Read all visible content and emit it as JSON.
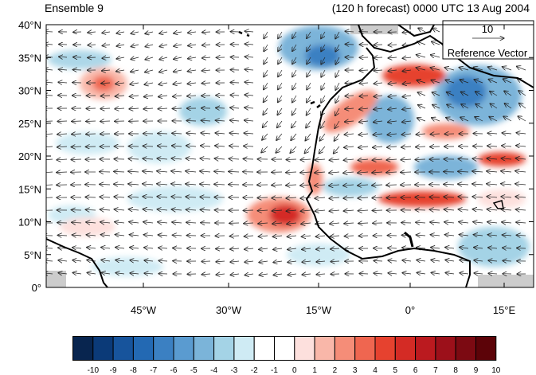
{
  "title_left": "Ensemble 9",
  "title_right": "(120 h forecast) 0000 UTC 13 Aug 2004",
  "reference_vector": {
    "value": "10",
    "label": "Reference Vector"
  },
  "y_ticks": [
    "0°",
    "5°N",
    "10°N",
    "15°N",
    "20°N",
    "25°N",
    "30°N",
    "35°N",
    "40°N"
  ],
  "x_ticks": [
    "45°W",
    "30°W",
    "15°W",
    "0°",
    "15°E"
  ],
  "colorbar": {
    "labels": [
      "-10",
      "-9",
      "-8",
      "-7",
      "-6",
      "-5",
      "-4",
      "-3",
      "-2",
      "-1",
      "0",
      "1",
      "2",
      "3",
      "4",
      "5",
      "6",
      "7",
      "8",
      "9",
      "10"
    ],
    "colors": [
      "#08254f",
      "#0b3a78",
      "#17549c",
      "#2369b3",
      "#3b80c2",
      "#5a9bd0",
      "#7bb4d9",
      "#a4d3e6",
      "#cfebf4",
      "#ffffff",
      "#ffffff",
      "#fde0dd",
      "#f9b7a9",
      "#f58d78",
      "#ef6650",
      "#e6422f",
      "#d42b25",
      "#bb1a1f",
      "#9c101a",
      "#7c0a12",
      "#5c0308"
    ]
  }
}
